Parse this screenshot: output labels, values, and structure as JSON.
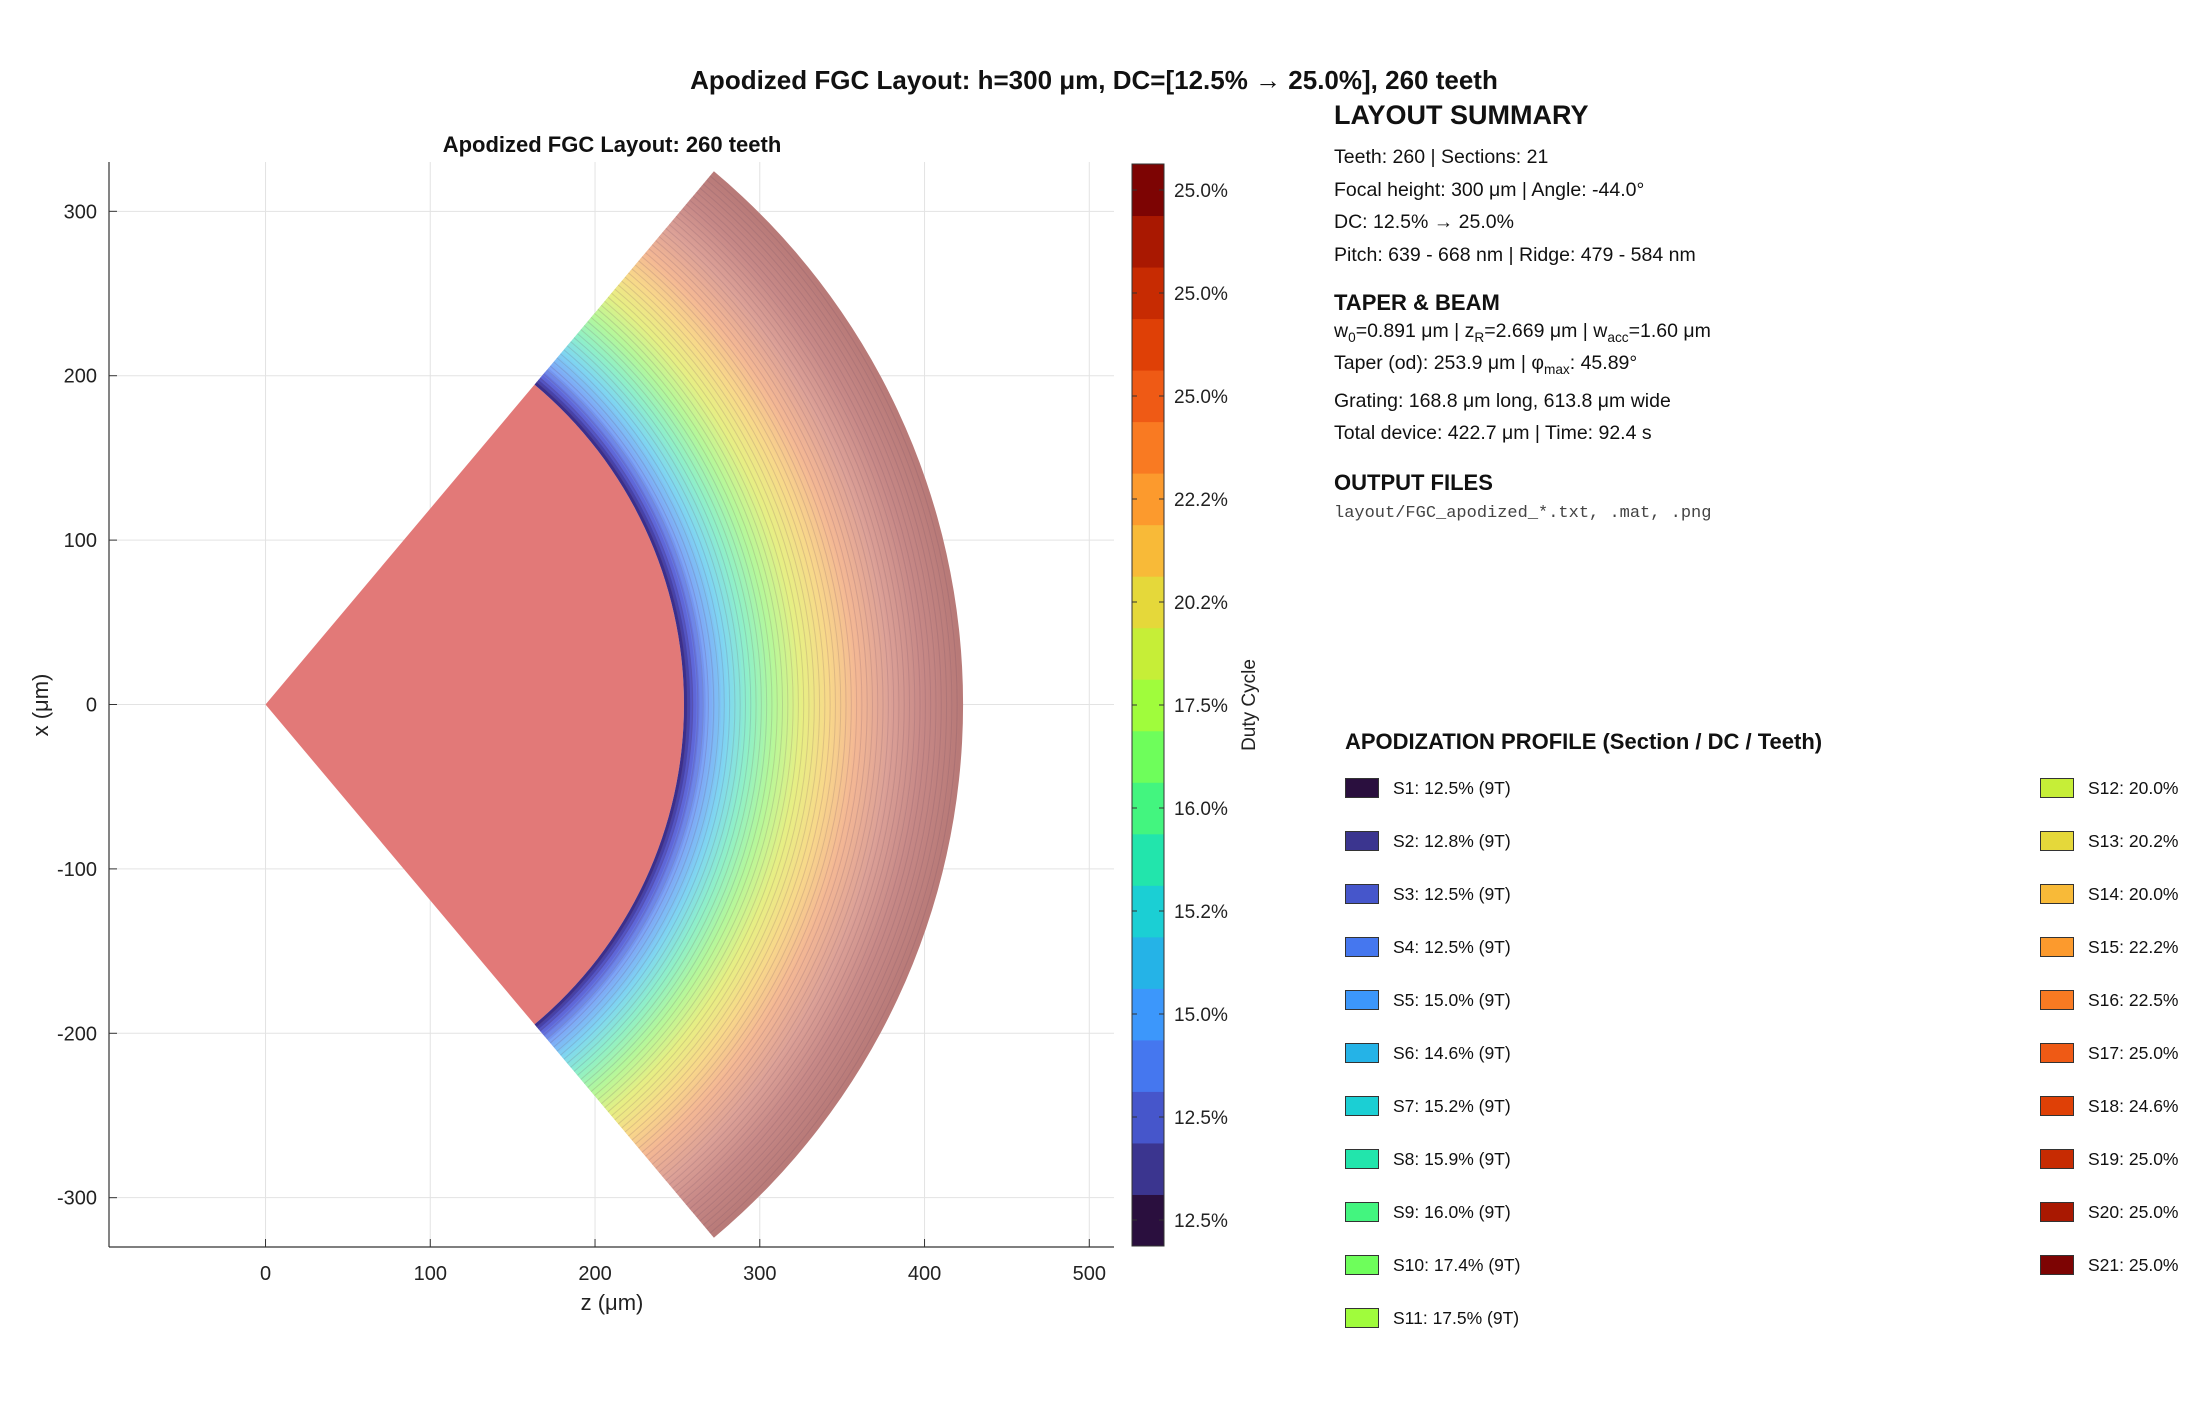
{
  "figure": {
    "suptitle": "Apodized FGC Layout: h=300 μm, DC=[12.5% → 25.0%], 260 teeth"
  },
  "chart_data": {
    "type": "contour",
    "title": "Apodized FGC Layout: 260 teeth",
    "xlabel": "z (μm)",
    "ylabel": "x (μm)",
    "xlim": [
      -95,
      515
    ],
    "ylim": [
      -330,
      330
    ],
    "xticks": [
      "0",
      "100",
      "200",
      "300",
      "400",
      "500"
    ],
    "yticks": [
      "-300",
      "-200",
      "-100",
      "0",
      "100",
      "200",
      "300"
    ],
    "xtick_values": [
      0,
      100,
      200,
      300,
      400,
      500
    ],
    "ytick_values": [
      -300,
      -200,
      -100,
      0,
      100,
      200,
      300
    ],
    "grid": true,
    "taper": {
      "apex": [
        0,
        0
      ],
      "half_angle_deg": 50,
      "outer_radius": 254
    },
    "grating": {
      "inner_radius": 254,
      "outer_radius": 423,
      "half_angle_deg": 50
    },
    "colorbar": {
      "label": "Duty Cycle",
      "tick_labels": [
        "25.0%",
        "25.0%",
        "25.0%",
        "22.2%",
        "20.2%",
        "17.5%",
        "16.0%",
        "15.2%",
        "15.0%",
        "12.5%",
        "12.5%"
      ],
      "colors": [
        "#2a0f3e",
        "#3b358f",
        "#4656cb",
        "#4577ef",
        "#3c97fb",
        "#25b3e7",
        "#1bcfd4",
        "#22e5ac",
        "#43f57f",
        "#6efe5b",
        "#a0fc3c",
        "#c6ee37",
        "#e5d83a",
        "#f8ba38",
        "#fc9a2d",
        "#f97a22",
        "#ef5a15",
        "#df4006",
        "#c72b02",
        "#a91801",
        "#7d0403"
      ]
    }
  },
  "summary": {
    "title": "LAYOUT SUMMARY",
    "lines": [
      "Teeth: 260  |  Sections: 21",
      "Focal height: 300 μm  |  Angle: -44.0°",
      "DC: 12.5% → 25.0%",
      "Pitch: 639 - 668 nm  |  Ridge: 479 - 584 nm"
    ]
  },
  "taper_beam": {
    "title": "TAPER & BEAM",
    "w0_sym": "w",
    "w0_sub": "0",
    "w0_val": "=0.891 μm  |  ",
    "zr_sym": "z",
    "zr_sub": "R",
    "zr_val": "=2.669 μm  |  ",
    "wacc_sym": "w",
    "wacc_sub": "acc",
    "wacc_val": "=1.60 μm",
    "taper_pre": "Taper (od): 253.9 μm  |  ",
    "phi_sym": "φ",
    "phi_sub": "max",
    "phi_val": ": 45.89°",
    "grating": "Grating: 168.8 μm long, 613.8 μm wide",
    "total": "Total device: 422.7 μm  |  Time: 92.4 s"
  },
  "output": {
    "title": "OUTPUT FILES",
    "files": "layout/FGC_apodized_*.txt, .mat, .png"
  },
  "apodization": {
    "title": "APODIZATION PROFILE (Section / DC / Teeth)",
    "items": [
      {
        "label": "S1: 12.5%  (9T)",
        "color": "#2a0f3e"
      },
      {
        "label": "S2: 12.8%  (9T)",
        "color": "#3b358f"
      },
      {
        "label": "S3: 12.5%  (9T)",
        "color": "#4656cb"
      },
      {
        "label": "S4: 12.5%  (9T)",
        "color": "#4577ef"
      },
      {
        "label": "S5: 15.0%  (9T)",
        "color": "#3c97fb"
      },
      {
        "label": "S6: 14.6%  (9T)",
        "color": "#25b3e7"
      },
      {
        "label": "S7: 15.2%  (9T)",
        "color": "#1bcfd4"
      },
      {
        "label": "S8: 15.9%  (9T)",
        "color": "#22e5ac"
      },
      {
        "label": "S9: 16.0%  (9T)",
        "color": "#43f57f"
      },
      {
        "label": "S10: 17.4%  (9T)",
        "color": "#6efe5b"
      },
      {
        "label": "S11: 17.5%  (9T)",
        "color": "#a0fc3c"
      },
      {
        "label": "S12: 20.0%",
        "color": "#c6ee37"
      },
      {
        "label": "S13: 20.2%",
        "color": "#e5d83a"
      },
      {
        "label": "S14: 20.0%",
        "color": "#f8ba38"
      },
      {
        "label": "S15: 22.2%",
        "color": "#fc9a2d"
      },
      {
        "label": "S16: 22.5%",
        "color": "#f97a22"
      },
      {
        "label": "S17: 25.0%",
        "color": "#ef5a15"
      },
      {
        "label": "S18: 24.6%",
        "color": "#df4006"
      },
      {
        "label": "S19: 25.0%",
        "color": "#c72b02"
      },
      {
        "label": "S20: 25.0%",
        "color": "#a91801"
      },
      {
        "label": "S21: 25.0%",
        "color": "#7d0403"
      }
    ]
  }
}
